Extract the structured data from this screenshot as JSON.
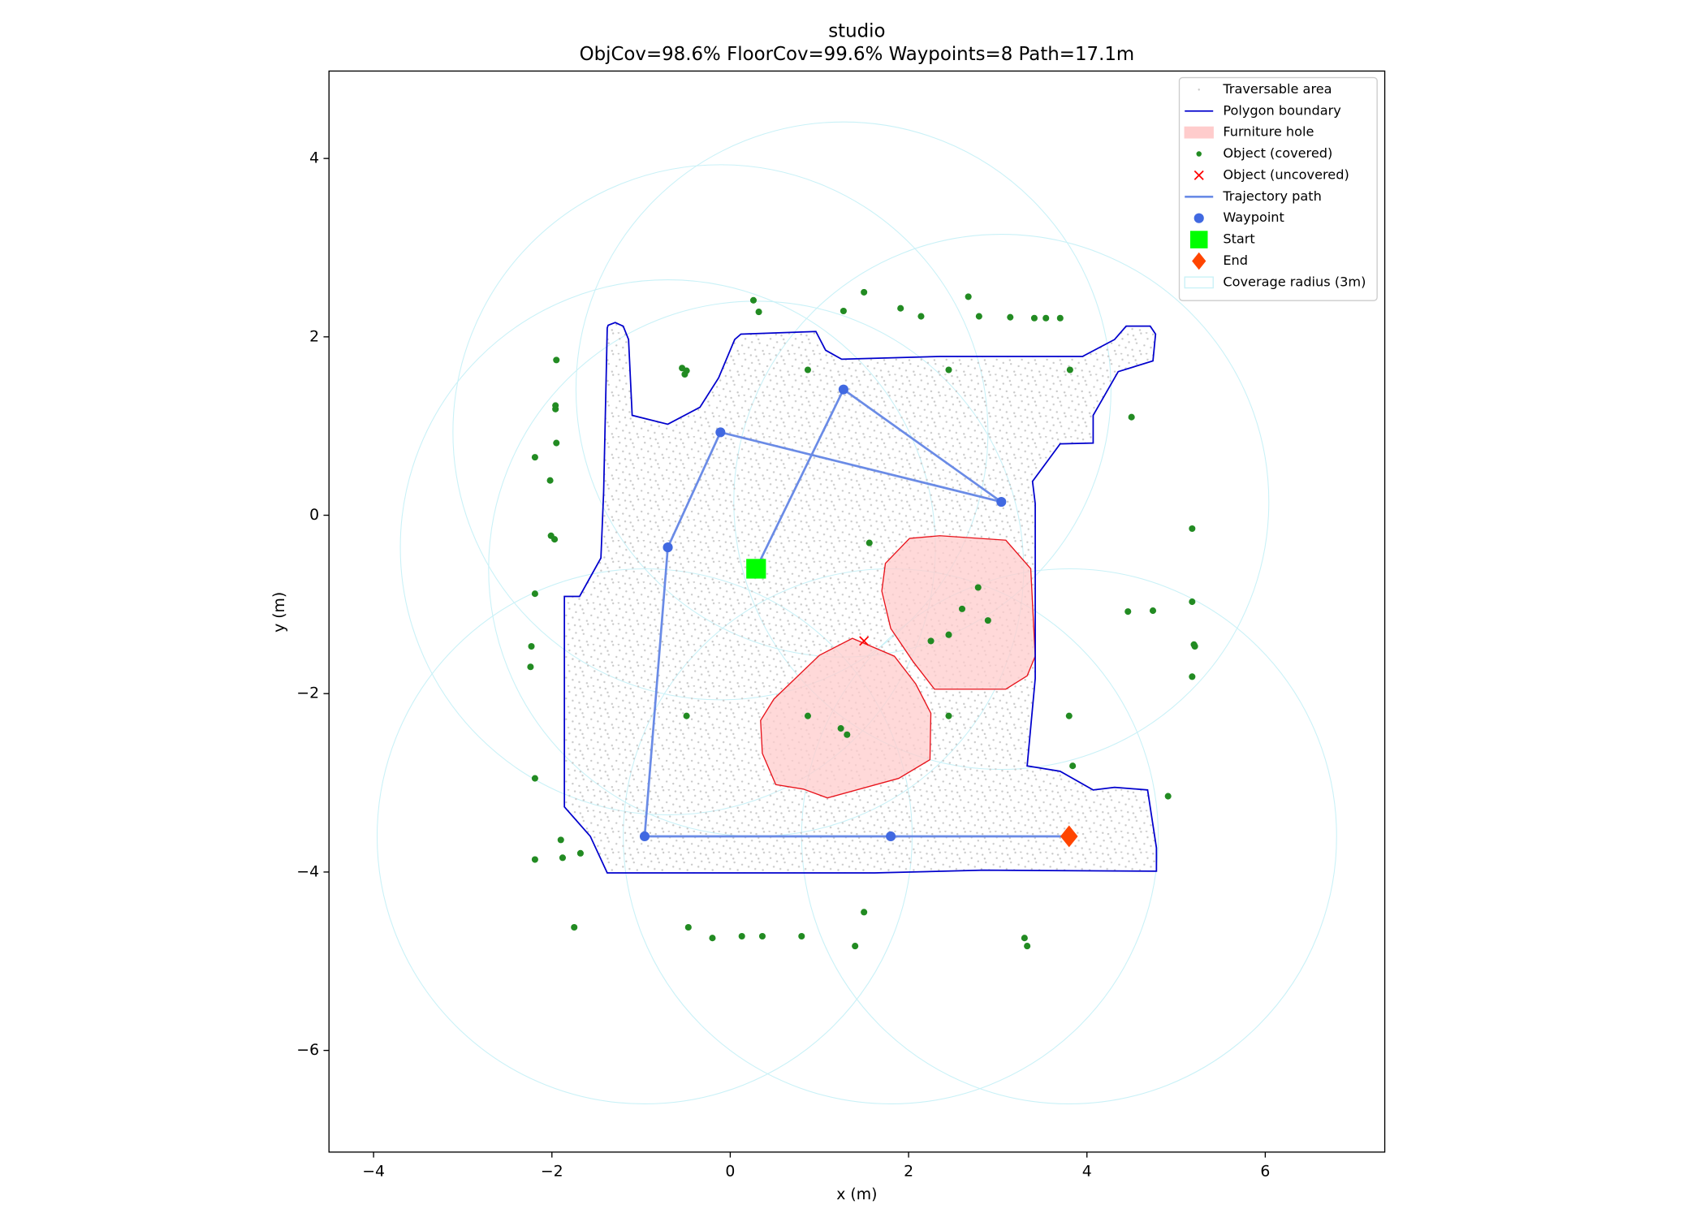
{
  "chart_data": {
    "type": "scatter",
    "title": "studio",
    "subtitle": "ObjCov=98.6% FloorCov=99.6% Waypoints=8 Path=17.1m",
    "xlabel": "x (m)",
    "ylabel": "y (m)",
    "xlim": [
      -4.5,
      7.34
    ],
    "ylim": [
      -7.14,
      4.98
    ],
    "xticks": [
      {
        "value": -4,
        "label": "−4"
      },
      {
        "value": -2,
        "label": "−2"
      },
      0,
      2,
      4,
      6
    ],
    "yticks": [
      4,
      2,
      0,
      {
        "value": -2,
        "label": "−2"
      },
      {
        "value": -4,
        "label": "−4"
      },
      {
        "value": -6,
        "label": "−6"
      }
    ],
    "legend": "upper right",
    "series": [
      {
        "name": "Traversable area",
        "kind": "area",
        "color": "#c8c8c8"
      },
      {
        "name": "Polygon boundary",
        "kind": "outline",
        "color": "#0000cd",
        "x": [
          -1.37,
          -1.29,
          -1.2,
          -1.14,
          -1.1,
          -0.7,
          -0.34,
          -0.13,
          0.05,
          0.12,
          0.96,
          1.07,
          1.25,
          2.35,
          3.95,
          4.31,
          4.44,
          4.71,
          4.77,
          4.74,
          4.35,
          4.07,
          4.07,
          3.7,
          3.39,
          3.42,
          3.42,
          3.33,
          3.7,
          4.07,
          4.31,
          4.68,
          4.78,
          4.78,
          2.84,
          1.62,
          0.39,
          -1.38,
          -1.57,
          -1.86,
          -1.86,
          -1.69,
          -1.45,
          -1.42,
          -1.38
        ],
        "y": [
          2.13,
          2.16,
          2.12,
          1.97,
          1.12,
          1.02,
          1.21,
          1.54,
          1.97,
          2.03,
          2.06,
          1.85,
          1.75,
          1.78,
          1.78,
          1.97,
          2.12,
          2.12,
          2.03,
          1.73,
          1.61,
          1.12,
          0.81,
          0.8,
          0.38,
          0.13,
          -1.83,
          -2.81,
          -2.87,
          -3.08,
          -3.05,
          -3.08,
          -3.73,
          -3.99,
          -3.98,
          -4.01,
          -4.01,
          -4.01,
          -3.6,
          -3.27,
          -0.91,
          -0.91,
          -0.48,
          0.26,
          2.1
        ]
      },
      {
        "name": "Furniture hole",
        "kind": "holes",
        "color": "#ffcccc",
        "edgecolor": "#e8141c",
        "polygons": [
          {
            "x": [
              2.01,
              2.35,
              3.09,
              3.37,
              3.42,
              3.33,
              3.09,
              2.29,
              2.05,
              1.8,
              1.7,
              1.74
            ],
            "y": [
              -0.26,
              -0.23,
              -0.28,
              -0.6,
              -1.58,
              -1.8,
              -1.95,
              -1.95,
              -1.64,
              -1.27,
              -0.85,
              -0.54
            ]
          },
          {
            "x": [
              1.37,
              1.84,
              2.08,
              2.25,
              2.24,
              1.89,
              1.09,
              0.82,
              0.51,
              0.36,
              0.34,
              0.49,
              1.0
            ],
            "y": [
              -1.38,
              -1.58,
              -1.89,
              -2.22,
              -2.74,
              -2.95,
              -3.17,
              -3.07,
              -3.02,
              -2.67,
              -2.3,
              -2.06,
              -1.57
            ]
          }
        ]
      },
      {
        "name": "Object (covered)",
        "kind": "points",
        "marker": "o",
        "size": 3,
        "color": "#228b22",
        "x": [
          0.26,
          0.32,
          1.5,
          1.27,
          1.91,
          2.14,
          2.67,
          2.79,
          3.14,
          3.41,
          3.54,
          3.7,
          -1.95,
          -0.54,
          -0.49,
          -0.51,
          0.87,
          2.45,
          3.81,
          -1.96,
          -1.96,
          4.5,
          -1.95,
          -2.19,
          -2.02,
          -2.01,
          -1.97,
          5.18,
          1.56,
          -2.19,
          2.78,
          5.18,
          4.46,
          4.74,
          2.6,
          2.89,
          2.45,
          2.25,
          -2.23,
          -2.24,
          5.2,
          5.21,
          5.18,
          -0.49,
          0.87,
          2.45,
          3.8,
          1.24,
          1.31,
          3.84,
          -2.19,
          4.91,
          -1.9,
          -1.68,
          -1.88,
          -2.19,
          -1.75,
          -0.47,
          -0.2,
          0.13,
          0.36,
          0.8,
          1.5,
          1.4,
          3.3,
          3.33
        ],
        "y": [
          2.41,
          2.28,
          2.5,
          2.29,
          2.32,
          2.23,
          2.45,
          2.23,
          2.22,
          2.21,
          2.21,
          2.21,
          1.74,
          1.65,
          1.62,
          1.58,
          1.63,
          1.63,
          1.63,
          1.23,
          1.19,
          1.1,
          0.81,
          0.65,
          0.39,
          -0.23,
          -0.27,
          -0.15,
          -0.31,
          -0.88,
          -0.81,
          -0.97,
          -1.08,
          -1.07,
          -1.05,
          -1.18,
          -1.34,
          -1.41,
          -1.47,
          -1.7,
          -1.45,
          -1.47,
          -1.81,
          -2.25,
          -2.25,
          -2.25,
          -2.25,
          -2.39,
          -2.46,
          -2.81,
          -2.95,
          -3.15,
          -3.64,
          -3.79,
          -3.84,
          -3.86,
          -4.62,
          -4.62,
          -4.74,
          -4.72,
          -4.72,
          -4.72,
          -4.45,
          -4.83,
          -4.74,
          -4.83
        ]
      },
      {
        "name": "Object (uncovered)",
        "kind": "points",
        "marker": "x",
        "size": 4,
        "color": "#ff0000",
        "x": [
          1.5
        ],
        "y": [
          -1.41
        ]
      },
      {
        "name": "Trajectory path",
        "kind": "line",
        "color": "#6a8be6",
        "x": [
          0.29,
          1.27,
          3.04,
          -0.11,
          -0.7,
          -0.96,
          1.8,
          3.8
        ],
        "y": [
          -0.6,
          1.41,
          0.15,
          0.93,
          -0.36,
          -3.6,
          -3.6,
          -3.6
        ]
      },
      {
        "name": "Waypoint",
        "kind": "points",
        "marker": "o",
        "size": 4.5,
        "color": "#4169e1",
        "x": [
          1.27,
          3.04,
          -0.11,
          -0.7,
          -0.96,
          1.8
        ],
        "y": [
          1.41,
          0.15,
          0.93,
          -0.36,
          -3.6,
          -3.6
        ]
      },
      {
        "name": "Start",
        "kind": "points",
        "marker": "s",
        "size": 9,
        "color": "#00ff00",
        "x": [
          0.29
        ],
        "y": [
          -0.6
        ]
      },
      {
        "name": "End",
        "kind": "points",
        "marker": "D",
        "size": 10,
        "color": "#ff4500",
        "x": [
          3.8
        ],
        "y": [
          -3.6
        ]
      },
      {
        "name": "Coverage radius (3m)",
        "kind": "circles",
        "radius": 3,
        "color": "#c9f1f7",
        "x": [
          0.29,
          1.27,
          3.04,
          -0.11,
          -0.7,
          -0.96,
          1.8,
          3.8
        ],
        "y": [
          -0.6,
          1.41,
          0.15,
          0.93,
          -0.36,
          -3.6,
          -3.6,
          -3.6
        ]
      }
    ]
  }
}
